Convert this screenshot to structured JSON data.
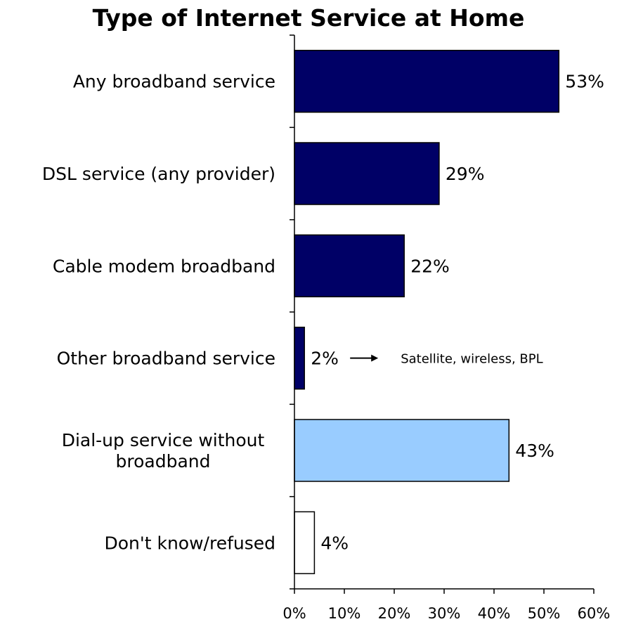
{
  "chart_data": {
    "type": "bar",
    "orientation": "horizontal",
    "title": "Type of Internet Service at Home",
    "xlabel": "",
    "ylabel": "",
    "xlim": [
      0,
      60
    ],
    "x_ticks": [
      "0%",
      "10%",
      "20%",
      "30%",
      "40%",
      "50%",
      "60%"
    ],
    "categories": [
      [
        "Any broadband service"
      ],
      [
        "DSL service (any provider)"
      ],
      [
        "Cable modem broadband"
      ],
      [
        "Other broadband service"
      ],
      [
        "Dial-up service without",
        "broadband"
      ],
      [
        "Don't know/refused"
      ]
    ],
    "values": [
      53,
      29,
      22,
      2,
      43,
      4
    ],
    "value_labels": [
      "53%",
      "29%",
      "22%",
      "2%",
      "43%",
      "4%"
    ],
    "bar_colors": [
      "#000066",
      "#000066",
      "#000066",
      "#000066",
      "#99CCFF",
      "#FFFFFF"
    ],
    "grid": false,
    "legend": "none",
    "annotations": [
      {
        "category_index": 3,
        "text": "Satellite, wireless, BPL",
        "arrow": true
      }
    ]
  }
}
